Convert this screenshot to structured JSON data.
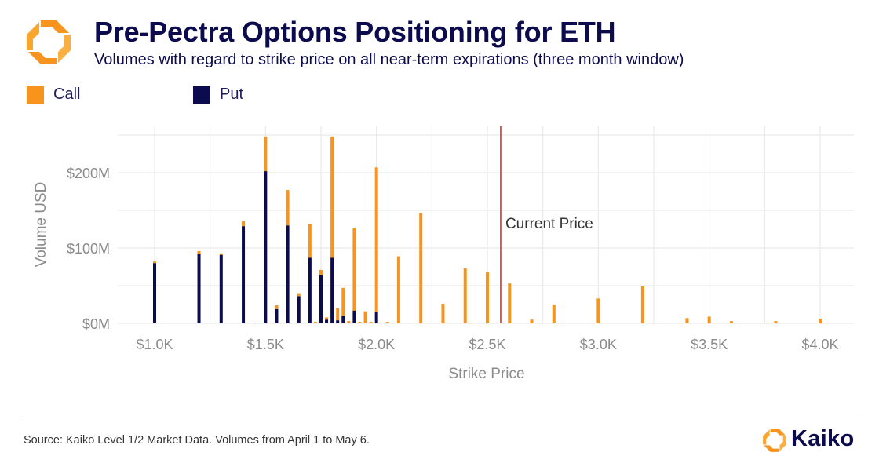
{
  "header": {
    "title": "Pre-Pectra Options Positioning for ETH",
    "subtitle": "Volumes with regard to strike price on all near-term expirations (three month window)"
  },
  "colors": {
    "call": "#f7941d",
    "put": "#0b0b4d",
    "current_price_line": "#e02020",
    "grid": "#e6e6e6",
    "axis_text": "#8a8a8a"
  },
  "chart_data": {
    "type": "bar",
    "stacked": true,
    "title": "Pre-Pectra Options Positioning for ETH",
    "xlabel": "Strike Price",
    "ylabel": "Volume USD",
    "xlim": [
      850,
      4100
    ],
    "ylim": [
      0,
      260
    ],
    "x_ticks": [
      {
        "value": 1000,
        "label": "$1.0K"
      },
      {
        "value": 1500,
        "label": "$1.5K"
      },
      {
        "value": 2000,
        "label": "$2.0K"
      },
      {
        "value": 2500,
        "label": "$2.5K"
      },
      {
        "value": 3000,
        "label": "$3.0K"
      },
      {
        "value": 3500,
        "label": "$3.5K"
      },
      {
        "value": 4000,
        "label": "$4.0K"
      }
    ],
    "y_ticks": [
      {
        "value": 0,
        "label": "$0M"
      },
      {
        "value": 100,
        "label": "$100M"
      },
      {
        "value": 200,
        "label": "$200M"
      }
    ],
    "legend": {
      "position": "top-left",
      "entries": [
        "Call",
        "Put"
      ]
    },
    "series": [
      {
        "name": "Put",
        "color": "#0b0b4d"
      },
      {
        "name": "Call",
        "color": "#f7941d"
      }
    ],
    "data": [
      {
        "strike": 1000,
        "put": 80,
        "call": 2
      },
      {
        "strike": 1200,
        "put": 92,
        "call": 4
      },
      {
        "strike": 1300,
        "put": 91,
        "call": 2
      },
      {
        "strike": 1400,
        "put": 129,
        "call": 7
      },
      {
        "strike": 1450,
        "put": 0,
        "call": 1
      },
      {
        "strike": 1500,
        "put": 202,
        "call": 46
      },
      {
        "strike": 1550,
        "put": 19,
        "call": 5
      },
      {
        "strike": 1600,
        "put": 130,
        "call": 47
      },
      {
        "strike": 1650,
        "put": 36,
        "call": 4
      },
      {
        "strike": 1700,
        "put": 87,
        "call": 45
      },
      {
        "strike": 1725,
        "put": 0,
        "call": 2
      },
      {
        "strike": 1750,
        "put": 64,
        "call": 7
      },
      {
        "strike": 1775,
        "put": 5,
        "call": 3
      },
      {
        "strike": 1800,
        "put": 87,
        "call": 161
      },
      {
        "strike": 1825,
        "put": 4,
        "call": 16
      },
      {
        "strike": 1850,
        "put": 10,
        "call": 37
      },
      {
        "strike": 1875,
        "put": 0,
        "call": 3
      },
      {
        "strike": 1900,
        "put": 17,
        "call": 109
      },
      {
        "strike": 1925,
        "put": 0,
        "call": 2
      },
      {
        "strike": 1950,
        "put": 0,
        "call": 16
      },
      {
        "strike": 1975,
        "put": 0,
        "call": 2
      },
      {
        "strike": 2000,
        "put": 15,
        "call": 192
      },
      {
        "strike": 2050,
        "put": 0,
        "call": 2
      },
      {
        "strike": 2100,
        "put": 0,
        "call": 89
      },
      {
        "strike": 2200,
        "put": 0,
        "call": 146
      },
      {
        "strike": 2300,
        "put": 0,
        "call": 26
      },
      {
        "strike": 2400,
        "put": 0,
        "call": 73
      },
      {
        "strike": 2500,
        "put": 1,
        "call": 67
      },
      {
        "strike": 2600,
        "put": 0,
        "call": 53
      },
      {
        "strike": 2700,
        "put": 0,
        "call": 5
      },
      {
        "strike": 2800,
        "put": 1,
        "call": 24
      },
      {
        "strike": 3000,
        "put": 0,
        "call": 33
      },
      {
        "strike": 3200,
        "put": 0,
        "call": 49
      },
      {
        "strike": 3400,
        "put": 0,
        "call": 7
      },
      {
        "strike": 3500,
        "put": 0,
        "call": 9
      },
      {
        "strike": 3600,
        "put": 0,
        "call": 3
      },
      {
        "strike": 3800,
        "put": 0,
        "call": 3
      },
      {
        "strike": 4000,
        "put": 0,
        "call": 6
      }
    ],
    "annotations": [
      {
        "type": "vline",
        "x": 2560,
        "label": "Current Price"
      }
    ]
  },
  "footer": {
    "source": "Source: Kaiko Level 1/2 Market Data. Volumes from April 1 to May 6.",
    "brand": "Kaiko"
  }
}
